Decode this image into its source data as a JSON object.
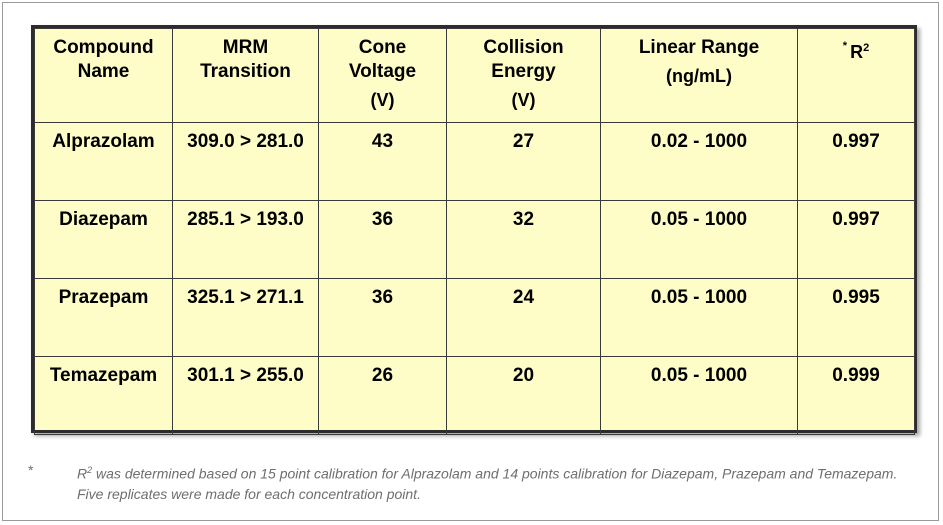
{
  "table": {
    "headers": [
      {
        "label": "Compound Name",
        "unit": ""
      },
      {
        "label": "MRM Transition",
        "unit": ""
      },
      {
        "label": "Cone Voltage",
        "unit": "(V)"
      },
      {
        "label": "Collision Energy",
        "unit": "(V)"
      },
      {
        "label": "Linear Range",
        "unit": "(ng/mL)"
      },
      {
        "label": "R",
        "unit": ""
      }
    ],
    "r2_header": {
      "star": "*",
      "base": "R",
      "sup": "2"
    },
    "rows": [
      [
        "Alprazolam",
        "309.0 > 281.0",
        "43",
        "27",
        "0.02 - 1000",
        "0.997"
      ],
      [
        "Diazepam",
        "285.1 > 193.0",
        "36",
        "32",
        "0.05 - 1000",
        "0.997"
      ],
      [
        "Prazepam",
        "325.1 > 271.1",
        "36",
        "24",
        "0.05 - 1000",
        "0.995"
      ],
      [
        "Temazepam",
        "301.1 > 255.0",
        "26",
        "20",
        "0.05 - 1000",
        "0.999"
      ]
    ]
  },
  "footnote": {
    "mark": "*",
    "r_base": "R",
    "r_sup": "2",
    "text": " was determined based on 15 point calibration for Alprazolam and 14 points calibration for Diazepam, Prazepam and Temazepam.  Five replicates were made for each concentration point."
  },
  "colors": {
    "table_bg": "#fefdc7",
    "border": "#2c2c2c",
    "footnote_text": "#6e6e6e"
  }
}
